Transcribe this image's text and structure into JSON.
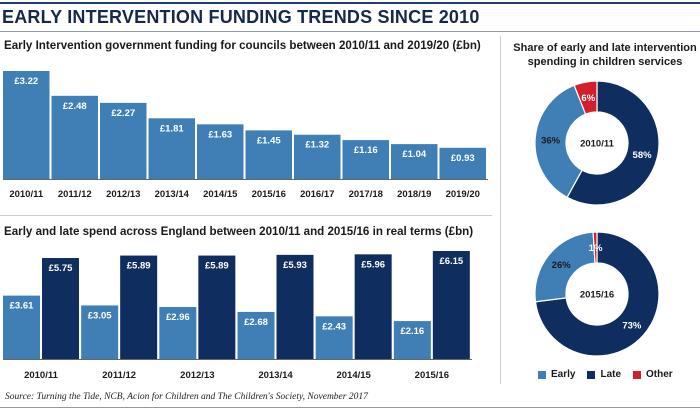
{
  "header": {
    "title": "EARLY INTERVENTION FUNDING TRENDS SINCE 2010"
  },
  "colors": {
    "early": "#3f7fb5",
    "late": "#0f2d5e",
    "other": "#d41f2b",
    "funding_bar": "#3f7fb5"
  },
  "chart_data": [
    {
      "type": "bar",
      "title": "Early Intervention government funding for councils between 2010/11 and 2019/20 (£bn)",
      "categories": [
        "2010/11",
        "2011/12",
        "2012/13",
        "2013/14",
        "2014/15",
        "2015/16",
        "2016/17",
        "2017/18",
        "2018/19",
        "2019/20"
      ],
      "values": [
        3.22,
        2.48,
        2.27,
        1.81,
        1.63,
        1.45,
        1.32,
        1.16,
        1.04,
        0.93
      ],
      "value_labels": [
        "£3.22",
        "£2.48",
        "£2.27",
        "£1.81",
        "£1.63",
        "£1.45",
        "£1.32",
        "£1.16",
        "£1.04",
        "£0.93"
      ],
      "ylim": [
        0,
        3.22
      ]
    },
    {
      "type": "bar",
      "title": "Early and late spend across England between 2010/11 and 2015/16 in real terms (£bn)",
      "categories": [
        "2010/11",
        "2011/12",
        "2012/13",
        "2013/14",
        "2014/15",
        "2015/16"
      ],
      "series": [
        {
          "name": "Early",
          "values": [
            3.61,
            3.05,
            2.96,
            2.68,
            2.43,
            2.16
          ],
          "value_labels": [
            "£3.61",
            "£3.05",
            "£2.96",
            "£2.68",
            "£2.43",
            "£2.16"
          ]
        },
        {
          "name": "Late",
          "values": [
            5.75,
            5.89,
            5.89,
            5.93,
            5.96,
            6.15
          ],
          "value_labels": [
            "£5.75",
            "£5.89",
            "£5.89",
            "£5.93",
            "£5.96",
            "£6.15"
          ]
        }
      ],
      "ylim": [
        0,
        6.15
      ]
    },
    {
      "type": "pie",
      "title": "Share of early and late intervention spending in children services",
      "center_label": "2010/11",
      "slices": [
        {
          "name": "Early",
          "value": 36,
          "label": "36%"
        },
        {
          "name": "Late",
          "value": 58,
          "label": "58%"
        },
        {
          "name": "Other",
          "value": 6,
          "label": "6%"
        }
      ]
    },
    {
      "type": "pie",
      "center_label": "2015/16",
      "slices": [
        {
          "name": "Early",
          "value": 26,
          "label": "26%"
        },
        {
          "name": "Late",
          "value": 73,
          "label": "73%"
        },
        {
          "name": "Other",
          "value": 1,
          "label": "1%"
        }
      ]
    }
  ],
  "legend": [
    {
      "name": "Early",
      "color_key": "early"
    },
    {
      "name": "Late",
      "color_key": "late"
    },
    {
      "name": "Other",
      "color_key": "other"
    }
  ],
  "source": "Source: Turning the Tide, NCB, Acion for Children and The Children's Society, November 2017"
}
